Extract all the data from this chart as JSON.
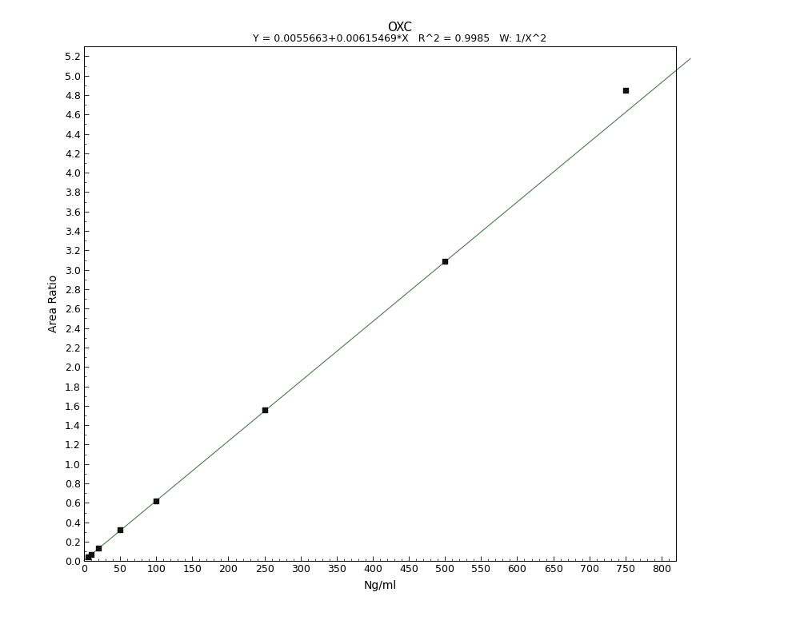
{
  "title": "OXC",
  "subtitle": "Y = 0.0055663+0.00615469*X   R^2 = 0.9985   W: 1/X^2",
  "xlabel": "Ng/ml",
  "ylabel": "Area Ratio",
  "intercept": 0.0055663,
  "slope": 0.00615469,
  "data_points_x": [
    5,
    10,
    20,
    50,
    100,
    250,
    500,
    750
  ],
  "data_points_y": [
    0.04,
    0.07,
    0.13,
    0.32,
    0.62,
    1.56,
    3.09,
    4.85
  ],
  "xlim": [
    0,
    820
  ],
  "ylim": [
    0.0,
    5.3
  ],
  "line_color": "#4a7a4a",
  "point_color": "#111111",
  "background_color": "#ffffff",
  "tick_label_fontsize": 9,
  "axis_label_fontsize": 10,
  "title_fontsize": 11,
  "x_ticks": [
    0,
    50,
    100,
    150,
    200,
    250,
    300,
    350,
    400,
    450,
    500,
    550,
    600,
    650,
    700,
    750,
    800
  ],
  "y_ticks": [
    0.0,
    0.2,
    0.4,
    0.6,
    0.8,
    1.0,
    1.2,
    1.4,
    1.6,
    1.8,
    2.0,
    2.2,
    2.4,
    2.6,
    2.8,
    3.0,
    3.2,
    3.4,
    3.6,
    3.8,
    4.0,
    4.2,
    4.4,
    4.6,
    4.8,
    5.0,
    5.2
  ]
}
